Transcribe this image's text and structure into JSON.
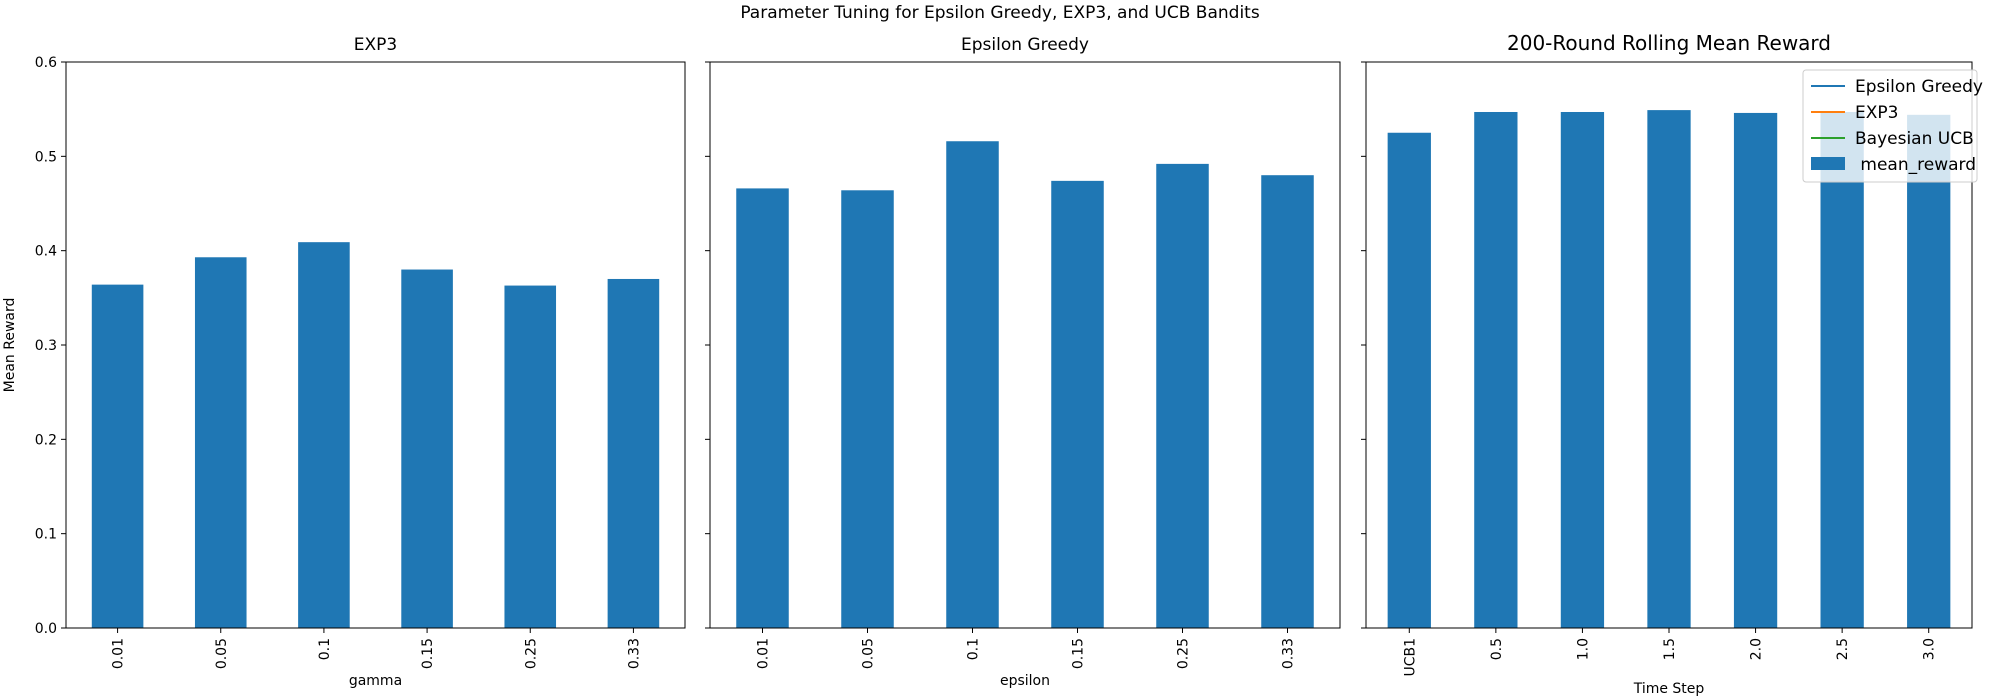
{
  "figure": {
    "suptitle": "Parameter Tuning for Epsilon Greedy, EXP3, and UCB Bandits"
  },
  "colors": {
    "bar": "#1f77b4",
    "epsilon_greedy_line": "#1f77b4",
    "exp3_line": "#ff7f0e",
    "bayesian_ucb_line": "#2ca02c"
  },
  "chart_data": [
    {
      "type": "bar",
      "title": "EXP3",
      "xlabel": "gamma",
      "ylabel": "Mean Reward",
      "ylim": [
        0,
        0.6
      ],
      "yticks": [
        "0.0",
        "0.1",
        "0.2",
        "0.3",
        "0.4",
        "0.5",
        "0.6"
      ],
      "categories": [
        "0.01",
        "0.05",
        "0.1",
        "0.15",
        "0.25",
        "0.33"
      ],
      "values": [
        0.364,
        0.393,
        0.409,
        0.38,
        0.363,
        0.37
      ],
      "grid": false
    },
    {
      "type": "bar",
      "title": "Epsilon Greedy",
      "xlabel": "epsilon",
      "ylabel": "",
      "ylim": [
        0,
        0.6
      ],
      "categories": [
        "0.01",
        "0.05",
        "0.1",
        "0.15",
        "0.25",
        "0.33"
      ],
      "values": [
        0.466,
        0.464,
        0.516,
        0.474,
        0.492,
        0.48
      ],
      "grid": false
    },
    {
      "type": "bar",
      "title": "200-Round Rolling Mean Reward",
      "xlabel": "Time Step",
      "ylabel": "",
      "ylim": [
        0,
        0.6
      ],
      "categories": [
        "UCB1",
        "0.5",
        "1.0",
        "1.5",
        "2.0",
        "2.5",
        "3.0"
      ],
      "values": [
        0.525,
        0.547,
        0.547,
        0.549,
        0.546,
        0.547,
        0.544
      ],
      "grid": false,
      "legend": {
        "position": "top-right",
        "entries": [
          {
            "label": "Epsilon Greedy",
            "kind": "line",
            "color": "#1f77b4"
          },
          {
            "label": "EXP3",
            "kind": "line",
            "color": "#ff7f0e"
          },
          {
            "label": "Bayesian UCB",
            "kind": "line",
            "color": "#2ca02c"
          },
          {
            "label": " mean_reward",
            "kind": "bar",
            "color": "#1f77b4"
          }
        ]
      }
    }
  ]
}
